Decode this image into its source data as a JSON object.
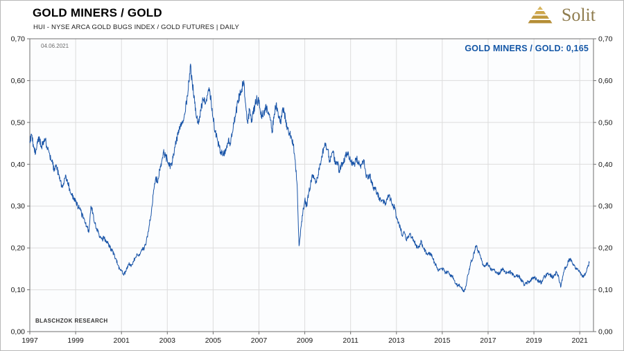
{
  "header": {
    "title": "GOLD MINERS / GOLD",
    "subtitle": "HUI - NYSE ARCA GOLD BUGS INDEX / GOLD FUTURES | DAILY"
  },
  "logo": {
    "text": "Solit"
  },
  "annotations": {
    "date": "04.06.2021",
    "current": "GOLD MINERS / GOLD: 0,165",
    "watermark": "BLASCHZOK RESEARCH"
  },
  "colors": {
    "line": "#1a55a8",
    "current_label": "#1356a6",
    "logo_gold": "#8f7c4e",
    "grid": "#dcdcdc",
    "border": "#6f6f6f",
    "plot_bg": "#fcfdfe"
  },
  "chart_data": {
    "type": "line",
    "title": "GOLD MINERS / GOLD",
    "subtitle": "HUI - NYSE ARCA GOLD BUGS INDEX / GOLD FUTURES | DAILY",
    "series_name": "GOLD MINERS / GOLD",
    "last_value": 0.165,
    "last_value_label": "0,165",
    "x_start_year": 1997,
    "samples_per_year": 12,
    "xlim": [
      1997,
      2021.6
    ],
    "ylim": [
      0,
      0.7
    ],
    "xticks": [
      1997,
      1999,
      2001,
      2003,
      2005,
      2007,
      2009,
      2011,
      2013,
      2015,
      2017,
      2019,
      2021
    ],
    "ytick_values": [
      0.0,
      0.1,
      0.2,
      0.3,
      0.4,
      0.5,
      0.6,
      0.7
    ],
    "ytick_labels": [
      "0,00",
      "0,10",
      "0,20",
      "0,30",
      "0,40",
      "0,50",
      "0,60",
      "0,70"
    ],
    "grid": true,
    "values": [
      0.455,
      0.47,
      0.44,
      0.425,
      0.45,
      0.465,
      0.44,
      0.455,
      0.46,
      0.44,
      0.43,
      0.41,
      0.4,
      0.385,
      0.395,
      0.375,
      0.36,
      0.345,
      0.36,
      0.37,
      0.355,
      0.34,
      0.33,
      0.315,
      0.31,
      0.3,
      0.295,
      0.285,
      0.27,
      0.26,
      0.25,
      0.24,
      0.3,
      0.285,
      0.26,
      0.245,
      0.235,
      0.225,
      0.22,
      0.225,
      0.215,
      0.21,
      0.2,
      0.195,
      0.185,
      0.175,
      0.16,
      0.15,
      0.145,
      0.138,
      0.142,
      0.15,
      0.165,
      0.155,
      0.165,
      0.175,
      0.185,
      0.18,
      0.19,
      0.195,
      0.2,
      0.215,
      0.24,
      0.265,
      0.3,
      0.34,
      0.37,
      0.355,
      0.385,
      0.405,
      0.43,
      0.42,
      0.41,
      0.395,
      0.4,
      0.415,
      0.44,
      0.46,
      0.475,
      0.49,
      0.5,
      0.52,
      0.545,
      0.58,
      0.635,
      0.6,
      0.565,
      0.52,
      0.5,
      0.515,
      0.54,
      0.555,
      0.545,
      0.565,
      0.575,
      0.55,
      0.51,
      0.48,
      0.465,
      0.445,
      0.43,
      0.42,
      0.425,
      0.44,
      0.46,
      0.45,
      0.475,
      0.5,
      0.525,
      0.55,
      0.565,
      0.58,
      0.6,
      0.545,
      0.5,
      0.53,
      0.5,
      0.52,
      0.545,
      0.555,
      0.545,
      0.525,
      0.515,
      0.53,
      0.535,
      0.525,
      0.505,
      0.48,
      0.52,
      0.545,
      0.525,
      0.5,
      0.515,
      0.535,
      0.5,
      0.485,
      0.475,
      0.465,
      0.445,
      0.41,
      0.35,
      0.205,
      0.25,
      0.285,
      0.315,
      0.3,
      0.33,
      0.35,
      0.375,
      0.365,
      0.36,
      0.375,
      0.4,
      0.42,
      0.44,
      0.45,
      0.435,
      0.41,
      0.42,
      0.43,
      0.4,
      0.405,
      0.385,
      0.395,
      0.405,
      0.415,
      0.425,
      0.42,
      0.41,
      0.405,
      0.4,
      0.415,
      0.405,
      0.395,
      0.4,
      0.41,
      0.375,
      0.365,
      0.375,
      0.355,
      0.345,
      0.34,
      0.33,
      0.32,
      0.31,
      0.315,
      0.305,
      0.315,
      0.325,
      0.315,
      0.305,
      0.295,
      0.275,
      0.26,
      0.25,
      0.23,
      0.24,
      0.22,
      0.225,
      0.235,
      0.225,
      0.22,
      0.21,
      0.2,
      0.205,
      0.215,
      0.2,
      0.195,
      0.185,
      0.19,
      0.185,
      0.175,
      0.165,
      0.155,
      0.145,
      0.15,
      0.15,
      0.145,
      0.14,
      0.145,
      0.135,
      0.135,
      0.125,
      0.115,
      0.11,
      0.112,
      0.105,
      0.098,
      0.1,
      0.125,
      0.145,
      0.165,
      0.175,
      0.195,
      0.205,
      0.19,
      0.18,
      0.165,
      0.155,
      0.162,
      0.16,
      0.152,
      0.145,
      0.15,
      0.143,
      0.14,
      0.138,
      0.148,
      0.15,
      0.143,
      0.14,
      0.142,
      0.142,
      0.135,
      0.133,
      0.134,
      0.133,
      0.126,
      0.12,
      0.112,
      0.115,
      0.12,
      0.119,
      0.128,
      0.13,
      0.126,
      0.12,
      0.121,
      0.115,
      0.13,
      0.132,
      0.14,
      0.138,
      0.134,
      0.13,
      0.136,
      0.142,
      0.13,
      0.106,
      0.13,
      0.15,
      0.154,
      0.168,
      0.175,
      0.165,
      0.158,
      0.152,
      0.15,
      0.142,
      0.136,
      0.13,
      0.14,
      0.152,
      0.165
    ]
  }
}
